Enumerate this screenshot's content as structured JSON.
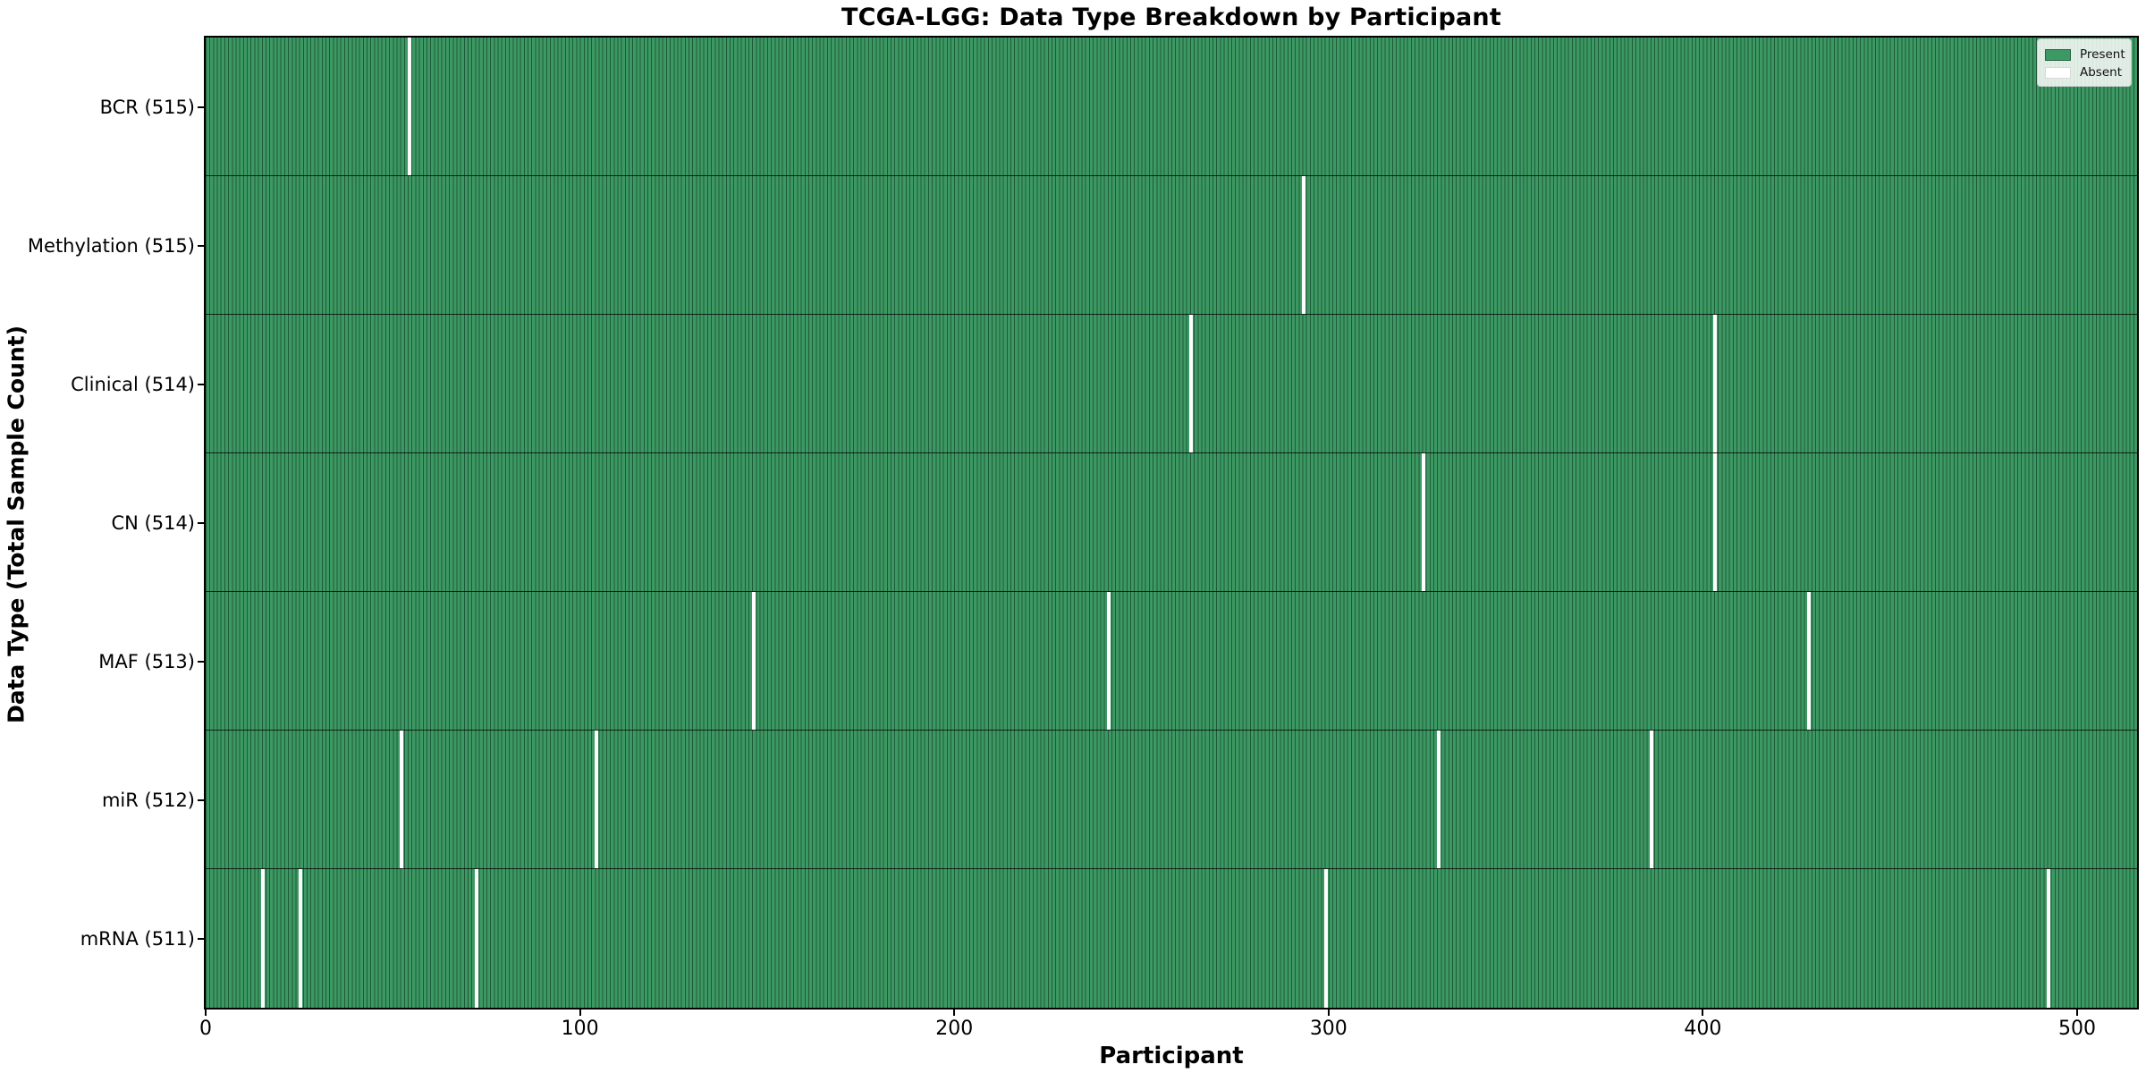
{
  "colors": {
    "present": "#3d9963",
    "cell_edge": "#1e5a39",
    "absent": "#ffffff",
    "spine": "#000000"
  },
  "chart_data": {
    "type": "heatmap",
    "title": "TCGA-LGG: Data Type Breakdown by Participant",
    "xlabel": "Participant",
    "ylabel": "Data Type (Total Sample Count)",
    "n_participants": 516,
    "x_ticks": [
      0,
      100,
      200,
      300,
      400,
      500
    ],
    "xlim": [
      0,
      516
    ],
    "grid": false,
    "legend_position": "upper right",
    "legend": [
      {
        "label": "Present",
        "color": "#3d9963"
      },
      {
        "label": "Absent",
        "color": "#ffffff"
      }
    ],
    "rows": [
      {
        "label": "BCR (515)",
        "data_type": "BCR",
        "present_count": 515,
        "absent_participants": [
          54
        ]
      },
      {
        "label": "Methylation (515)",
        "data_type": "Methylation",
        "present_count": 515,
        "absent_participants": [
          293
        ]
      },
      {
        "label": "Clinical (514)",
        "data_type": "Clinical",
        "present_count": 514,
        "absent_participants": [
          263,
          403
        ]
      },
      {
        "label": "CN (514)",
        "data_type": "CN",
        "present_count": 514,
        "absent_participants": [
          325,
          403
        ]
      },
      {
        "label": "MAF (513)",
        "data_type": "MAF",
        "present_count": 513,
        "absent_participants": [
          146,
          241,
          428
        ]
      },
      {
        "label": "miR (512)",
        "data_type": "miR",
        "present_count": 512,
        "absent_participants": [
          52,
          104,
          329,
          386
        ]
      },
      {
        "label": "mRNA (511)",
        "data_type": "mRNA",
        "present_count": 511,
        "absent_participants": [
          15,
          25,
          72,
          299,
          492
        ]
      }
    ]
  }
}
